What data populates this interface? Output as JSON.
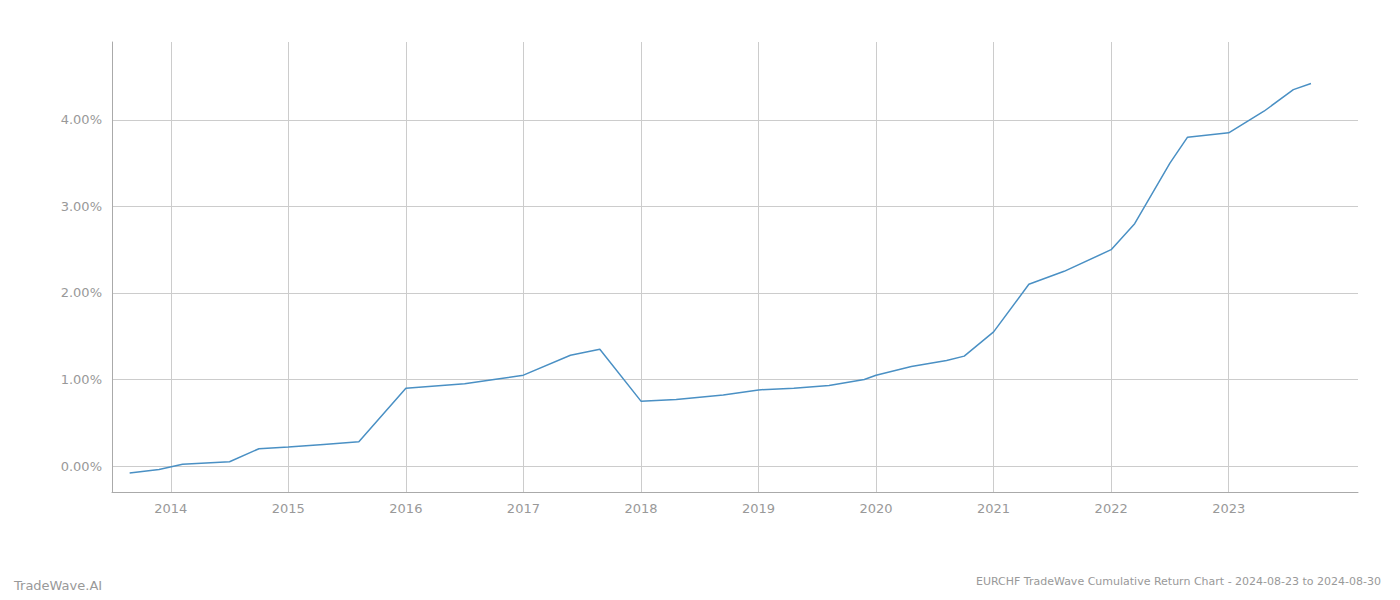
{
  "chart_data": {
    "type": "line",
    "title": "EURCHF TradeWave Cumulative Return Chart - 2024-08-23 to 2024-08-30",
    "annotations": [
      "TradeWave.AI"
    ],
    "color": "#4a90c4",
    "x": [
      2013.65,
      2013.9,
      2014.1,
      2014.5,
      2014.75,
      2015.0,
      2015.3,
      2015.6,
      2016.0,
      2016.5,
      2016.75,
      2017.0,
      2017.4,
      2017.65,
      2018.0,
      2018.3,
      2018.7,
      2019.0,
      2019.3,
      2019.6,
      2019.9,
      2020.0,
      2020.3,
      2020.6,
      2020.75,
      2021.0,
      2021.3,
      2021.6,
      2022.0,
      2022.2,
      2022.5,
      2022.65,
      2023.0,
      2023.3,
      2023.55,
      2023.7
    ],
    "values": [
      -0.08,
      -0.04,
      0.02,
      0.05,
      0.2,
      0.22,
      0.25,
      0.28,
      0.9,
      0.95,
      1.0,
      1.05,
      1.28,
      1.35,
      0.75,
      0.77,
      0.82,
      0.88,
      0.9,
      0.93,
      1.0,
      1.05,
      1.15,
      1.22,
      1.27,
      1.55,
      2.1,
      2.25,
      2.5,
      2.8,
      3.5,
      3.8,
      3.85,
      4.1,
      4.35,
      4.42
    ],
    "xlim": [
      2013.5,
      2024.1
    ],
    "xticks": [
      2014,
      2015,
      2016,
      2017,
      2018,
      2019,
      2020,
      2021,
      2022,
      2023
    ],
    "ylim": [
      -0.3,
      4.9
    ],
    "yticks": [
      {
        "value": 0.0,
        "label": "0.00%"
      },
      {
        "value": 1.0,
        "label": "1.00%"
      },
      {
        "value": 2.0,
        "label": "2.00%"
      },
      {
        "value": 3.0,
        "label": "3.00%"
      },
      {
        "value": 4.0,
        "label": "4.00%"
      }
    ],
    "grid": true
  }
}
